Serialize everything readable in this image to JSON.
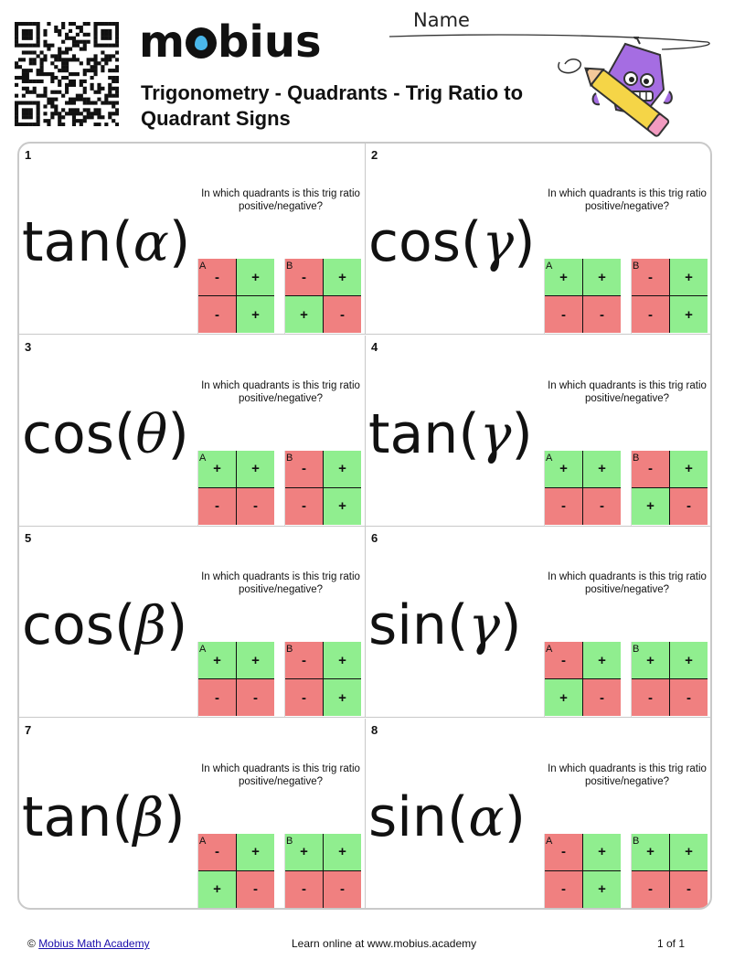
{
  "header": {
    "logo_left": "m",
    "logo_right": "bius",
    "title": "Trigonometry - Quadrants - Trig Ratio to Quadrant Signs",
    "name_label": "Name"
  },
  "question_text": "In which quadrants is this trig ratio positive/negative?",
  "problems": [
    {
      "number": "1",
      "func": "tan",
      "var": "α",
      "A": [
        "-",
        "+",
        "-",
        "+"
      ],
      "B": [
        "-",
        "+",
        "+",
        "-"
      ]
    },
    {
      "number": "2",
      "func": "cos",
      "var": "γ",
      "A": [
        "+",
        "+",
        "-",
        "-"
      ],
      "B": [
        "-",
        "+",
        "-",
        "+"
      ]
    },
    {
      "number": "3",
      "func": "cos",
      "var": "θ",
      "A": [
        "+",
        "+",
        "-",
        "-"
      ],
      "B": [
        "-",
        "+",
        "-",
        "+"
      ]
    },
    {
      "number": "4",
      "func": "tan",
      "var": "γ",
      "A": [
        "+",
        "+",
        "-",
        "-"
      ],
      "B": [
        "-",
        "+",
        "+",
        "-"
      ]
    },
    {
      "number": "5",
      "func": "cos",
      "var": "β",
      "A": [
        "+",
        "+",
        "-",
        "-"
      ],
      "B": [
        "-",
        "+",
        "-",
        "+"
      ]
    },
    {
      "number": "6",
      "func": "sin",
      "var": "γ",
      "A": [
        "-",
        "+",
        "+",
        "-"
      ],
      "B": [
        "+",
        "+",
        "-",
        "-"
      ]
    },
    {
      "number": "7",
      "func": "tan",
      "var": "β",
      "A": [
        "-",
        "+",
        "+",
        "-"
      ],
      "B": [
        "+",
        "+",
        "-",
        "-"
      ]
    },
    {
      "number": "8",
      "func": "sin",
      "var": "α",
      "A": [
        "-",
        "+",
        "-",
        "+"
      ],
      "B": [
        "+",
        "+",
        "-",
        "-"
      ]
    }
  ],
  "option_labels": {
    "a": "A",
    "b": "B"
  },
  "colors": {
    "positive": "#90ee8f",
    "negative": "#f08080"
  },
  "footer": {
    "copyright_symbol": "©",
    "link_text": "Mobius Math Academy",
    "center_text": "Learn online at www.mobius.academy",
    "page_text": "1 of 1"
  }
}
